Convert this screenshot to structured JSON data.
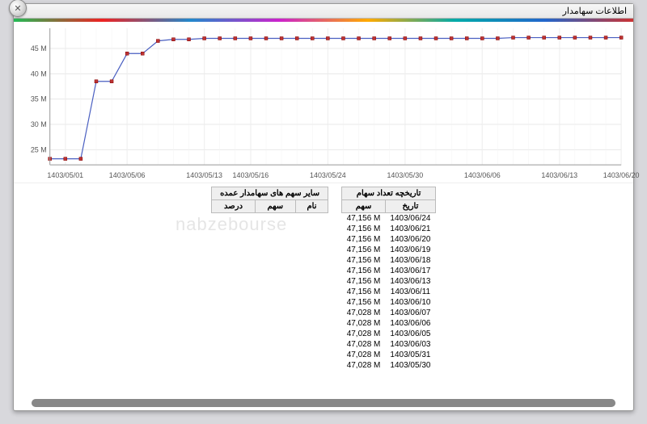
{
  "window": {
    "title": "اطلاعات سهامدار"
  },
  "watermark": "nabzebourse",
  "chart": {
    "type": "line",
    "ylabel_suffix": " M",
    "yticks": [
      25,
      30,
      35,
      40,
      45
    ],
    "ylim": [
      22,
      49
    ],
    "xticks": [
      "1403/05/01",
      "1403/05/06",
      "1403/05/13",
      "1403/05/16",
      "1403/05/24",
      "1403/05/30",
      "1403/06/06",
      "1403/06/13",
      "1403/06/20"
    ],
    "line_color": "#4a5fc1",
    "marker_color": "#b33939",
    "grid_color": "#e8e8e8",
    "background_color": "#ffffff",
    "points": [
      {
        "xi": 0,
        "y": 23.2
      },
      {
        "xi": 1,
        "y": 23.2
      },
      {
        "xi": 2,
        "y": 23.2
      },
      {
        "xi": 3,
        "y": 38.5
      },
      {
        "xi": 4,
        "y": 38.5
      },
      {
        "xi": 5,
        "y": 44.0
      },
      {
        "xi": 6,
        "y": 44.0
      },
      {
        "xi": 7,
        "y": 46.5
      },
      {
        "xi": 8,
        "y": 46.8
      },
      {
        "xi": 9,
        "y": 46.8
      },
      {
        "xi": 10,
        "y": 47.0
      },
      {
        "xi": 11,
        "y": 47.0
      },
      {
        "xi": 12,
        "y": 47.0
      },
      {
        "xi": 13,
        "y": 47.0
      },
      {
        "xi": 14,
        "y": 47.0
      },
      {
        "xi": 15,
        "y": 47.0
      },
      {
        "xi": 16,
        "y": 47.0
      },
      {
        "xi": 17,
        "y": 47.0
      },
      {
        "xi": 18,
        "y": 47.0
      },
      {
        "xi": 19,
        "y": 47.0
      },
      {
        "xi": 20,
        "y": 47.0
      },
      {
        "xi": 21,
        "y": 47.0
      },
      {
        "xi": 22,
        "y": 47.0
      },
      {
        "xi": 23,
        "y": 47.0
      },
      {
        "xi": 24,
        "y": 47.0
      },
      {
        "xi": 25,
        "y": 47.0
      },
      {
        "xi": 26,
        "y": 47.0
      },
      {
        "xi": 27,
        "y": 47.0
      },
      {
        "xi": 28,
        "y": 47.0
      },
      {
        "xi": 29,
        "y": 47.0
      },
      {
        "xi": 30,
        "y": 47.15
      },
      {
        "xi": 31,
        "y": 47.15
      },
      {
        "xi": 32,
        "y": 47.15
      },
      {
        "xi": 33,
        "y": 47.15
      },
      {
        "xi": 34,
        "y": 47.15
      },
      {
        "xi": 35,
        "y": 47.15
      },
      {
        "xi": 36,
        "y": 47.15
      },
      {
        "xi": 37,
        "y": 47.15
      }
    ],
    "n_points": 38
  },
  "history_table": {
    "title": "تاریخچه تعداد سهام",
    "col_date": "تاریخ",
    "col_shares": "سهم",
    "rows": [
      {
        "date": "1403/06/24",
        "shares": "47,156 M"
      },
      {
        "date": "1403/06/21",
        "shares": "47,156 M"
      },
      {
        "date": "1403/06/20",
        "shares": "47,156 M"
      },
      {
        "date": "1403/06/19",
        "shares": "47,156 M"
      },
      {
        "date": "1403/06/18",
        "shares": "47,156 M"
      },
      {
        "date": "1403/06/17",
        "shares": "47,156 M"
      },
      {
        "date": "1403/06/13",
        "shares": "47,156 M"
      },
      {
        "date": "1403/06/11",
        "shares": "47,156 M"
      },
      {
        "date": "1403/06/10",
        "shares": "47,156 M"
      },
      {
        "date": "1403/06/07",
        "shares": "47,028 M"
      },
      {
        "date": "1403/06/06",
        "shares": "47,028 M"
      },
      {
        "date": "1403/06/05",
        "shares": "47,028 M"
      },
      {
        "date": "1403/06/03",
        "shares": "47,028 M"
      },
      {
        "date": "1403/05/31",
        "shares": "47,028 M"
      },
      {
        "date": "1403/05/30",
        "shares": "47,028 M"
      }
    ]
  },
  "other_table": {
    "title": "سایر سهم های سهامدار عمده",
    "col_name": "نام",
    "col_shares": "سهم",
    "col_percent": "درصد"
  }
}
